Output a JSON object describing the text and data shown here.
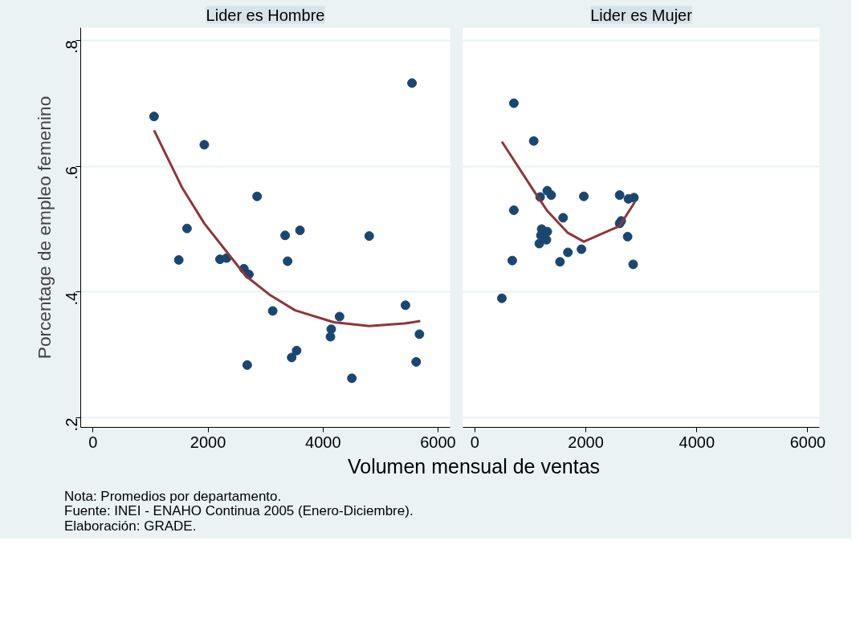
{
  "chart_data": [
    {
      "type": "scatter",
      "title": "Lider es Hombre",
      "ylabel": "Porcentage de empleo femenino",
      "xlabel": "Volumen mensual de ventas",
      "annotations": [
        "Nota: Promedios por departamento.",
        "Fuente: INEI - ENAHO Continua 2005 (Enero-Diciembre).",
        "Elaboración: GRADE."
      ],
      "xlim": [
        -215,
        6210
      ],
      "xticks": [
        0,
        2000,
        4000,
        6000
      ],
      "ylim": [
        0.185,
        0.82
      ],
      "yticks": [
        {
          "value": 0.2,
          "label": ".2"
        },
        {
          "value": 0.4,
          "label": ".4"
        },
        {
          "value": 0.6,
          "label": ".6"
        },
        {
          "value": 0.8,
          "label": ".8"
        }
      ],
      "grid": "y",
      "tick_labels": [
        "x",
        "y"
      ],
      "series": [
        {
          "marker": "circle",
          "color": "#1a476f",
          "x": [
            1061,
            1935,
            1634,
            1491,
            2208,
            2323,
            2624,
            2710,
            2853,
            2681,
            3341,
            3384,
            3599,
            3125,
            3455,
            3541,
            4143,
            4129,
            4287,
            4502,
            4803,
            5434,
            5548,
            5677,
            5620
          ],
          "values": [
            0.679,
            0.634,
            0.501,
            0.451,
            0.452,
            0.454,
            0.437,
            0.428,
            0.552,
            0.284,
            0.49,
            0.449,
            0.498,
            0.37,
            0.296,
            0.307,
            0.341,
            0.329,
            0.361,
            0.263,
            0.489,
            0.379,
            0.732,
            0.333,
            0.289
          ]
        },
        {
          "type": "line",
          "color": "#90353b",
          "x": [
            1061,
            1548,
            1935,
            2652,
            3082,
            3513,
            4186,
            4803,
            5419,
            5692
          ],
          "values": [
            0.657,
            0.566,
            0.509,
            0.426,
            0.395,
            0.371,
            0.352,
            0.346,
            0.35,
            0.354
          ]
        }
      ]
    },
    {
      "type": "scatter",
      "title": "Lider es Mujer",
      "xlim": [
        -215,
        6210
      ],
      "xticks": [
        0,
        2000,
        4000,
        6000
      ],
      "ylim": [
        0.185,
        0.82
      ],
      "yticks": [
        0.2,
        0.4,
        0.6,
        0.8
      ],
      "grid": "y",
      "tick_labels": "x",
      "series": [
        {
          "marker": "circle",
          "color": "#1a476f",
          "x": [
            703,
            1061,
            487,
            703,
            674,
            1176,
            1305,
            1376,
            1964,
            1591,
            1204,
            1305,
            1190,
            1290,
            1161,
            1677,
            1534,
            1921,
            2609,
            2767,
            2867,
            2638,
            2609,
            2753,
            2853
          ],
          "values": [
            0.7,
            0.64,
            0.39,
            0.53,
            0.45,
            0.551,
            0.561,
            0.554,
            0.552,
            0.518,
            0.5,
            0.496,
            0.49,
            0.483,
            0.477,
            0.463,
            0.448,
            0.468,
            0.554,
            0.548,
            0.55,
            0.513,
            0.509,
            0.488,
            0.444
          ]
        },
        {
          "type": "line",
          "color": "#90353b",
          "x": [
            487,
            1061,
            1305,
            1677,
            1964,
            2609,
            2882
          ],
          "values": [
            0.639,
            0.561,
            0.529,
            0.494,
            0.48,
            0.505,
            0.543
          ]
        }
      ]
    }
  ]
}
